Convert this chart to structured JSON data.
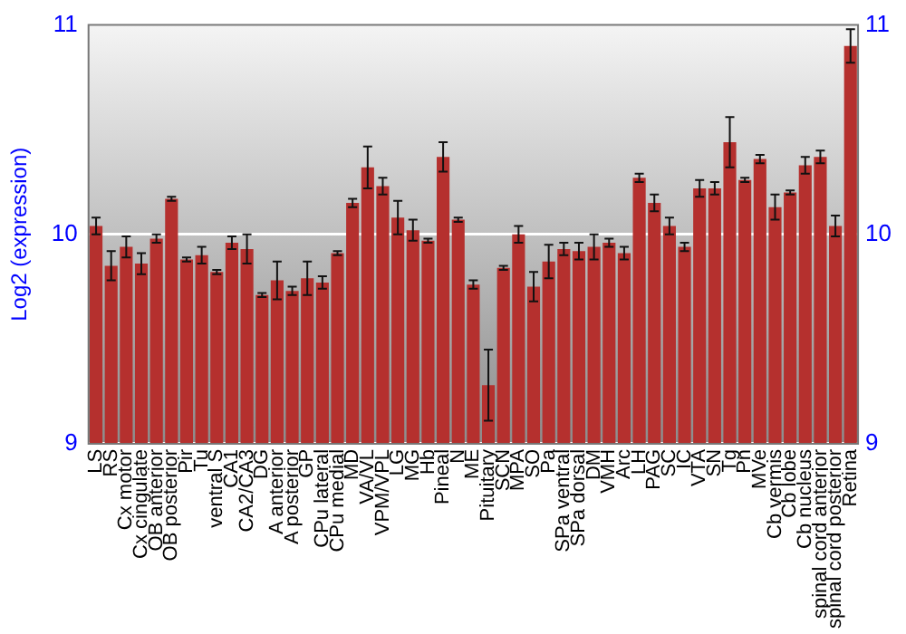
{
  "chart_data": {
    "type": "bar",
    "ylabel": "Log2 (expression)",
    "categories": [
      "LS",
      "RS",
      "Cx motor",
      "Cx cingulate",
      "OB anterior",
      "OB posterior",
      "Pir",
      "Tu",
      "ventral S",
      "CA1",
      "CA2/CA3",
      "DG",
      "A anterior",
      "A posterior",
      "GP",
      "CPu lateral",
      "CPu medial",
      "MD",
      "VA/VL",
      "VPM/VPL",
      "LG",
      "MG",
      "Hb",
      "Pineal",
      "N",
      "ME",
      "Pituitary",
      "SCN",
      "MPA",
      "SO",
      "Pa",
      "SPa ventral",
      "SPa dorsal",
      "DM",
      "VMH",
      "Arc",
      "LH",
      "PAG",
      "SC",
      "IC",
      "VTA",
      "SN",
      "Tg",
      "Pn",
      "MVe",
      "Cb vermis",
      "Cb lobe",
      "Cb nucleus",
      "spinal cord anterior",
      "spinal cord posterior",
      "Retina"
    ],
    "values": [
      10.04,
      9.85,
      9.94,
      9.86,
      9.98,
      10.17,
      9.88,
      9.9,
      9.82,
      9.96,
      9.93,
      9.71,
      9.78,
      9.73,
      9.79,
      9.77,
      9.91,
      10.15,
      10.32,
      10.23,
      10.08,
      10.02,
      9.97,
      10.37,
      10.07,
      9.76,
      9.28,
      9.84,
      10.0,
      9.75,
      9.87,
      9.93,
      9.92,
      9.94,
      9.96,
      9.91,
      10.27,
      10.15,
      10.04,
      9.94,
      10.22,
      10.22,
      10.44,
      10.26,
      10.36,
      10.13,
      10.2,
      10.33,
      10.37,
      10.04,
      10.9
    ],
    "errors": [
      0.04,
      0.07,
      0.05,
      0.05,
      0.02,
      0.01,
      0.01,
      0.04,
      0.01,
      0.03,
      0.07,
      0.01,
      0.09,
      0.02,
      0.08,
      0.03,
      0.01,
      0.02,
      0.1,
      0.04,
      0.08,
      0.05,
      0.01,
      0.07,
      0.01,
      0.02,
      0.17,
      0.01,
      0.04,
      0.07,
      0.08,
      0.03,
      0.04,
      0.06,
      0.02,
      0.03,
      0.02,
      0.04,
      0.04,
      0.02,
      0.04,
      0.03,
      0.12,
      0.01,
      0.02,
      0.06,
      0.01,
      0.04,
      0.03,
      0.05,
      0.08
    ],
    "color": "#b5302e",
    "ylim": [
      9,
      11
    ],
    "yticks": [
      9,
      10,
      11
    ],
    "y2lim": [
      9,
      11
    ],
    "y2ticks": [
      9,
      10,
      11
    ],
    "grid": "y"
  }
}
